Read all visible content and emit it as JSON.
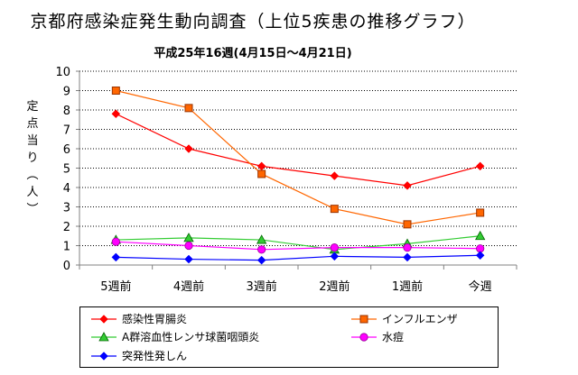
{
  "chart_data": {
    "type": "line",
    "title": "京都府感染症発生動向調査（上位5疾患の推移グラフ）",
    "subtitle": "平成25年16週(4月15日～4月21日)",
    "ylabel": "定点当り（人）",
    "xlabel": "",
    "categories": [
      "5週前",
      "4週前",
      "3週前",
      "2週前",
      "1週前",
      "今週"
    ],
    "ylim": [
      0,
      10
    ],
    "yticks": [
      "0",
      "1",
      "2",
      "3",
      "4",
      "5",
      "6",
      "7",
      "8",
      "9",
      "10"
    ],
    "grid": "horizontal-dotted",
    "legend_position": "bottom",
    "series": [
      {
        "name": "感染性胃腸炎",
        "color": "#ff0000",
        "marker": "diamond",
        "values": [
          7.8,
          6.0,
          5.1,
          4.6,
          4.1,
          5.1
        ]
      },
      {
        "name": "インフルエンザ",
        "color": "#ff6600",
        "marker": "square",
        "values": [
          9.0,
          8.1,
          4.7,
          2.9,
          2.1,
          2.7
        ]
      },
      {
        "name": "A群溶血性レンサ球菌咽頭炎",
        "color": "#33cc33",
        "marker": "triangle",
        "values": [
          1.3,
          1.4,
          1.3,
          0.8,
          1.1,
          1.5
        ]
      },
      {
        "name": "水痘",
        "color": "#ff00ff",
        "marker": "circle",
        "values": [
          1.2,
          1.0,
          0.8,
          0.9,
          0.9,
          0.85
        ]
      },
      {
        "name": "突発性発しん",
        "color": "#0000ff",
        "marker": "diamond",
        "values": [
          0.4,
          0.3,
          0.25,
          0.45,
          0.4,
          0.5
        ]
      }
    ]
  }
}
